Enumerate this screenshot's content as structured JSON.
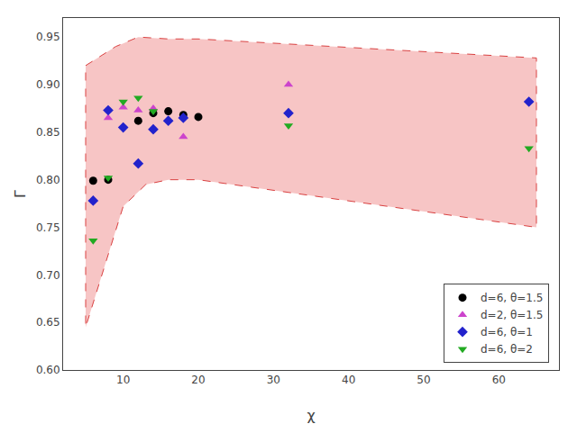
{
  "chart_data": {
    "type": "scatter",
    "xlabel": "χ",
    "ylabel": "Γ",
    "xlim": [
      2,
      68
    ],
    "ylim": [
      0.6,
      0.97
    ],
    "xticks": [
      10,
      20,
      30,
      40,
      50,
      60
    ],
    "yticks": [
      {
        "value": 0.6,
        "label": "0.60"
      },
      0.65,
      {
        "value": 0.7,
        "label": "0.70"
      },
      0.75,
      {
        "value": 0.8,
        "label": "0.80"
      },
      0.85,
      {
        "value": 0.9,
        "label": "0.90"
      },
      0.95
    ],
    "grid": false,
    "legend": "lower right",
    "region": {
      "upper": {
        "x": [
          5,
          9,
          12,
          16,
          20,
          65
        ],
        "y": [
          0.92,
          0.94,
          0.95,
          0.948,
          0.948,
          0.928
        ]
      },
      "lower": {
        "x": [
          5,
          10,
          13,
          16,
          20,
          65
        ],
        "y": [
          0.645,
          0.772,
          0.795,
          0.8,
          0.8,
          0.75
        ]
      },
      "color": "#f7c5c5",
      "border": {
        "color": "#d94040",
        "line_style": "dashed"
      }
    },
    "series": [
      {
        "name": "d=6, θ=1.5",
        "color": "black",
        "marker": "circle",
        "x": [
          6,
          8,
          12,
          14,
          16,
          18,
          20
        ],
        "values": [
          0.799,
          0.8,
          0.862,
          0.87,
          0.872,
          0.868,
          0.866
        ]
      },
      {
        "name": "d=2, θ=1.5",
        "color": "#cc44cc",
        "marker": "triangle-up",
        "x": [
          8,
          10,
          12,
          14,
          18,
          32
        ],
        "values": [
          0.865,
          0.876,
          0.873,
          0.875,
          0.845,
          0.9
        ]
      },
      {
        "name": "d=6, θ=1",
        "color": "#2222cc",
        "marker": "diamond",
        "x": [
          6,
          8,
          10,
          12,
          14,
          16,
          18,
          32,
          64
        ],
        "values": [
          0.778,
          0.873,
          0.855,
          0.817,
          0.853,
          0.862,
          0.865,
          0.87,
          0.882
        ]
      },
      {
        "name": "d=6, θ=2",
        "color": "#22aa22",
        "marker": "triangle-down",
        "x": [
          6,
          8,
          10,
          12,
          14,
          32,
          64
        ],
        "values": [
          0.736,
          0.802,
          0.882,
          0.886,
          0.872,
          0.857,
          0.833
        ]
      }
    ]
  }
}
